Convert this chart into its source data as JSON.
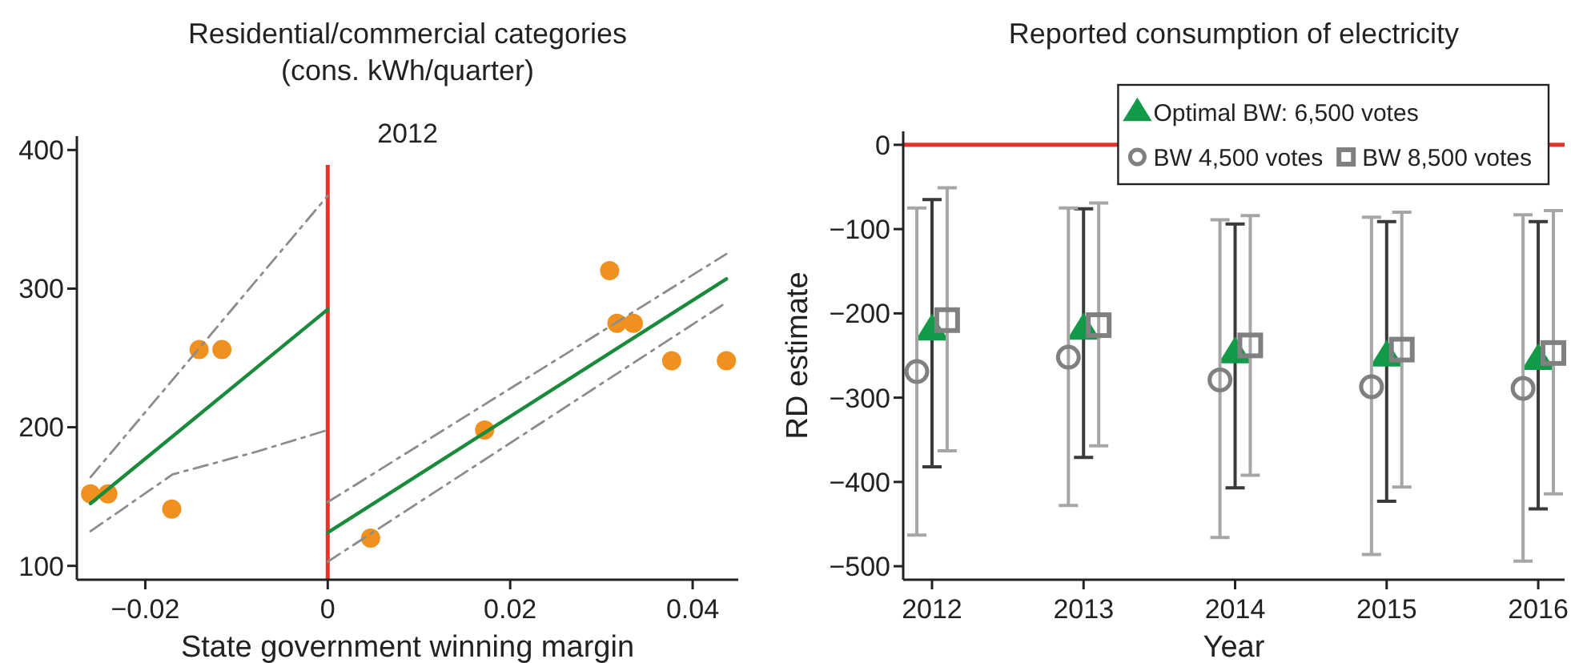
{
  "chart_data": [
    {
      "type": "scatter",
      "title": "Residential/commercial categories",
      "subtitle": "(cons. kWh/quarter)",
      "xlabel": "State government winning margin",
      "annotations": [
        "2012"
      ],
      "xlim": [
        -0.0275,
        0.045
      ],
      "ylim": [
        90,
        410
      ],
      "xticks": [
        {
          "value": -0.02,
          "label": "−0.02"
        },
        0,
        0.02,
        0.04
      ],
      "yticks": [
        100,
        200,
        300,
        400
      ],
      "grid": false,
      "legend": false,
      "ref_lines": [
        {
          "axis": "x",
          "value": 0,
          "color": "#e8312a"
        }
      ],
      "series": [
        {
          "color": "#f0901e",
          "marker": "circle",
          "x": [
            -0.026,
            -0.0241,
            -0.0171,
            -0.0141,
            -0.0116,
            0.0047,
            0.0172,
            0.0309,
            0.0317,
            0.0335,
            0.0377,
            0.0437
          ],
          "values": [
            152,
            152,
            141,
            256,
            256,
            120,
            198,
            313,
            275,
            275,
            248,
            248
          ]
        },
        {
          "type": "line",
          "color": "#1a8a3c",
          "line_style": "solid",
          "x": [
            -0.026,
            0
          ],
          "values": [
            145,
            285
          ]
        },
        {
          "type": "line",
          "color": "#1a8a3c",
          "line_style": "solid",
          "x": [
            0,
            0.0437
          ],
          "values": [
            124,
            307
          ]
        },
        {
          "type": "line",
          "color": "#8c8c8c",
          "line_style": "dashed",
          "x": [
            -0.026,
            0
          ],
          "values": [
            164,
            367
          ]
        },
        {
          "type": "line",
          "color": "#8c8c8c",
          "line_style": "dashed",
          "x": [
            -0.026,
            -0.017,
            -0.008,
            0
          ],
          "values": [
            125,
            166,
            182,
            198
          ]
        },
        {
          "type": "line",
          "color": "#8c8c8c",
          "line_style": "dashed",
          "x": [
            0,
            0.0437
          ],
          "values": [
            146,
            325
          ]
        },
        {
          "type": "line",
          "color": "#8c8c8c",
          "line_style": "dashed",
          "x": [
            0,
            0.0437
          ],
          "values": [
            103,
            290
          ]
        }
      ]
    },
    {
      "type": "scatter",
      "title": "Reported consumption of electricity",
      "xlabel": "Year",
      "ylabel": "RD estimate",
      "categories": [
        "2012",
        "2013",
        "2014",
        "2015",
        "2016"
      ],
      "ylim": [
        -516,
        16
      ],
      "yticks": [
        0,
        {
          "value": -100,
          "label": "−100"
        },
        {
          "value": -200,
          "label": "−200"
        },
        {
          "value": -300,
          "label": "−300"
        },
        {
          "value": -400,
          "label": "−400"
        },
        {
          "value": -500,
          "label": "−500"
        }
      ],
      "grid": false,
      "legend": "top right",
      "ref_lines": [
        {
          "axis": "y",
          "value": 0,
          "color": "#e8312a"
        }
      ],
      "series": [
        {
          "name": "Optimal BW: 6,500 votes",
          "color": "#129a48",
          "marker": "triangle",
          "values": [
            -220,
            -219,
            -247,
            -251,
            -255
          ],
          "errors": [
            [
              -382,
              -65
            ],
            [
              -371,
              -76
            ],
            [
              -407,
              -94
            ],
            [
              -423,
              -91
            ],
            [
              -432,
              -91
            ]
          ]
        },
        {
          "name": "BW 4,500 votes",
          "color": "#808080",
          "marker": "circle",
          "values": [
            -269,
            -252,
            -279,
            -287,
            -289
          ],
          "errors": [
            [
              -463,
              -75
            ],
            [
              -428,
              -75
            ],
            [
              -466,
              -89
            ],
            [
              -486,
              -86
            ],
            [
              -494,
              -83
            ]
          ]
        },
        {
          "name": "BW 8,500 votes",
          "color": "#808080",
          "marker": "square",
          "values": [
            -208,
            -214,
            -238,
            -243,
            -247
          ],
          "errors": [
            [
              -363,
              -51
            ],
            [
              -357,
              -69
            ],
            [
              -392,
              -84
            ],
            [
              -406,
              -80
            ],
            [
              -414,
              -78
            ]
          ]
        }
      ]
    }
  ]
}
